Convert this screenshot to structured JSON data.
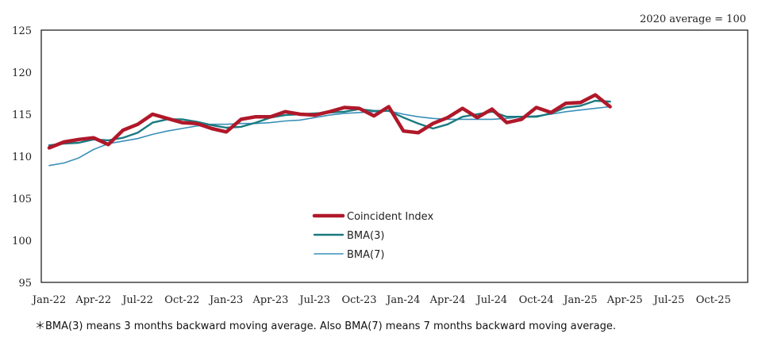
{
  "chart_data": {
    "type": "line",
    "note": "2020 average = 100",
    "footnote": "＊BMA(3) means 3 months backward moving average. Also BMA(7) means 7 months backward moving average.",
    "ylim": [
      95,
      125
    ],
    "yticks": [
      95,
      100,
      105,
      110,
      115,
      120,
      125
    ],
    "x_tick_labels": [
      "Jan-22",
      "Apr-22",
      "Jul-22",
      "Oct-22",
      "Jan-23",
      "Apr-23",
      "Jul-23",
      "Oct-23",
      "Jan-24",
      "Apr-24",
      "Jul-24",
      "Oct-24",
      "Jan-25",
      "Apr-25",
      "Jul-25",
      "Oct-25"
    ],
    "x_months": [
      "Jan-22",
      "Feb-22",
      "Mar-22",
      "Apr-22",
      "May-22",
      "Jun-22",
      "Jul-22",
      "Aug-22",
      "Sep-22",
      "Oct-22",
      "Nov-22",
      "Dec-22",
      "Jan-23",
      "Feb-23",
      "Mar-23",
      "Apr-23",
      "May-23",
      "Jun-23",
      "Jul-23",
      "Aug-23",
      "Sep-23",
      "Oct-23",
      "Nov-23",
      "Dec-23",
      "Jan-24",
      "Feb-24",
      "Mar-24",
      "Apr-24",
      "May-24",
      "Jun-24",
      "Jul-24",
      "Aug-24",
      "Sep-24",
      "Oct-24",
      "Nov-24",
      "Dec-24",
      "Jan-25",
      "Feb-25",
      "Mar-25",
      "Apr-25",
      "May-25",
      "Jun-25",
      "Jul-25",
      "Aug-25",
      "Sep-25",
      "Oct-25",
      "Nov-25",
      "Dec-25"
    ],
    "grid": false,
    "legend_position": "center-bottom",
    "series": [
      {
        "name": "Coincident Index",
        "color": "#b0182a",
        "values": [
          111.0,
          111.7,
          112.0,
          112.2,
          111.4,
          113.1,
          113.8,
          115.0,
          114.5,
          114.0,
          113.9,
          113.3,
          112.9,
          114.4,
          114.7,
          114.7,
          115.3,
          115.0,
          114.9,
          115.3,
          115.8,
          115.7,
          114.8,
          115.9,
          113.0,
          112.8,
          113.9,
          114.6,
          115.7,
          114.6,
          115.6,
          114.0,
          114.4,
          115.8,
          115.2,
          116.3,
          116.4,
          117.3,
          115.9
        ]
      },
      {
        "name": "BMA(3)",
        "color": "#1a7a80",
        "values": [
          111.3,
          111.5,
          111.6,
          112.0,
          111.9,
          112.2,
          112.8,
          114.0,
          114.4,
          114.4,
          114.1,
          113.7,
          113.4,
          113.5,
          114.0,
          114.6,
          114.9,
          115.0,
          115.1,
          115.2,
          115.3,
          115.6,
          115.4,
          115.4,
          114.6,
          113.9,
          113.3,
          113.8,
          114.7,
          115.0,
          115.3,
          114.7,
          114.7,
          114.7,
          115.1,
          115.8,
          116.0,
          116.6,
          116.5
        ]
      },
      {
        "name": "BMA(7)",
        "color": "#3a8fb8",
        "values": [
          108.9,
          109.2,
          109.8,
          110.8,
          111.5,
          111.8,
          112.1,
          112.6,
          113.0,
          113.3,
          113.6,
          113.8,
          113.8,
          113.9,
          113.9,
          114.0,
          114.2,
          114.3,
          114.6,
          114.9,
          115.1,
          115.2,
          115.3,
          115.4,
          115.0,
          114.7,
          114.5,
          114.4,
          114.4,
          114.4,
          114.4,
          114.5,
          114.7,
          114.8,
          115.0,
          115.3,
          115.5,
          115.7,
          115.9
        ]
      }
    ]
  }
}
